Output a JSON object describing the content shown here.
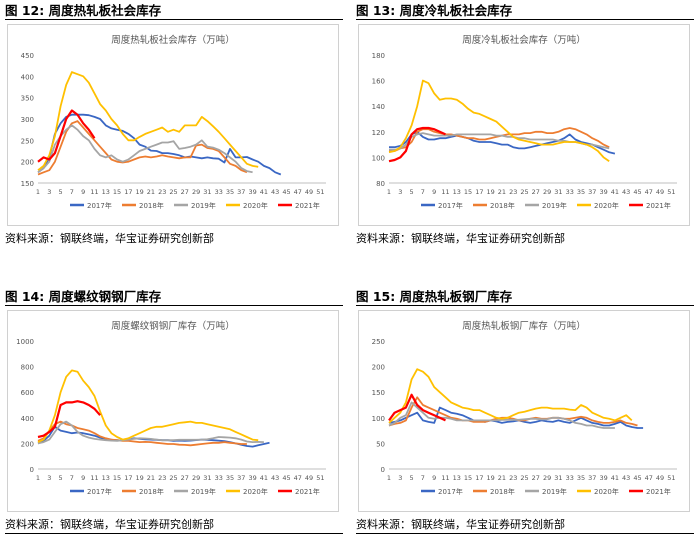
{
  "source_text": "资料来源：钢联终端，华宝证券研究创新部",
  "panels": [
    {
      "figure_label": "图 12:  周度热轧板社会库存",
      "chart_data": {
        "type": "line",
        "title": "周度热轧板社会库存（万吨）",
        "xlabel": "",
        "ylabel": "",
        "ylim": [
          150,
          450
        ],
        "y_ticks": [
          150,
          200,
          250,
          300,
          350,
          400,
          450
        ],
        "x_ticks": [
          1,
          3,
          5,
          7,
          9,
          11,
          13,
          15,
          17,
          19,
          21,
          23,
          25,
          27,
          29,
          31,
          33,
          35,
          37,
          39,
          41,
          43,
          45,
          47,
          49,
          51
        ],
        "series": [
          {
            "name": "2017年",
            "color": "#3a67c4",
            "values": [
              175,
              185,
              210,
              265,
              290,
              305,
              310,
              310,
              310,
              309,
              305,
              300,
              285,
              278,
              275,
              272,
              265,
              255,
              240,
              235,
              226,
              225,
              220,
              220,
              218,
              215,
              210,
              212,
              210,
              208,
              210,
              208,
              207,
              198,
              230,
              210,
              210,
              211,
              205,
              200,
              190,
              185,
              175,
              170
            ]
          },
          {
            "name": "2018年",
            "color": "#ed7d31",
            "values": [
              170,
              175,
              180,
              200,
              235,
              270,
              290,
              295,
              280,
              265,
              250,
              235,
              220,
              205,
              200,
              198,
              200,
              205,
              210,
              212,
              210,
              212,
              215,
              212,
              210,
              208,
              210,
              210,
              238,
              240,
              232,
              230,
              225,
              210,
              195,
              190,
              180,
              175
            ]
          },
          {
            "name": "2019年",
            "color": "#a5a5a5",
            "values": [
              175,
              185,
              200,
              240,
              260,
              275,
              285,
              275,
              260,
              250,
              230,
              215,
              210,
              215,
              205,
              200,
              205,
              215,
              225,
              230,
              235,
              240,
              245,
              245,
              248,
              230,
              232,
              235,
              240,
              250,
              235,
              233,
              228,
              220,
              210,
              200,
              185,
              178,
              175
            ]
          },
          {
            "name": "2020年",
            "color": "#ffc000",
            "values": [
              180,
              190,
              215,
              260,
              330,
              380,
              410,
              405,
              400,
              385,
              360,
              335,
              320,
              300,
              285,
              265,
              250,
              250,
              258,
              265,
              270,
              275,
              280,
              270,
              275,
              270,
              285,
              285,
              285,
              305,
              295,
              283,
              270,
              255,
              240,
              225,
              210,
              195,
              190,
              188
            ]
          },
          {
            "name": "2021年",
            "color": "#ff0000",
            "values": [
              200,
              210,
              205,
              220,
              260,
              300,
              320,
              310,
              290,
              275,
              255
            ]
          }
        ]
      }
    },
    {
      "figure_label": "图 13:  周度冷轧板社会库存",
      "chart_data": {
        "type": "line",
        "title": "周度冷轧板社会库存（万吨）",
        "xlabel": "",
        "ylabel": "",
        "ylim": [
          80,
          180
        ],
        "y_ticks": [
          80,
          100,
          120,
          140,
          160,
          180
        ],
        "x_ticks": [
          1,
          3,
          5,
          7,
          9,
          11,
          13,
          15,
          17,
          19,
          21,
          23,
          25,
          27,
          29,
          31,
          33,
          35,
          37,
          39,
          41,
          43,
          45,
          47,
          49,
          51
        ],
        "series": [
          {
            "name": "2017年",
            "color": "#3a67c4",
            "values": [
              108,
              108,
              109,
              112,
              118,
              120,
              116,
              114,
              114,
              115,
              115,
              116,
              117,
              116,
              115,
              113,
              112,
              112,
              112,
              111,
              110,
              110,
              108,
              107,
              107,
              108,
              109,
              110,
              111,
              112,
              113,
              115,
              118,
              114,
              112,
              111,
              110,
              108,
              106,
              104,
              103
            ]
          },
          {
            "name": "2018年",
            "color": "#ed7d31",
            "values": [
              105,
              105,
              107,
              108,
              112,
              120,
              122,
              122,
              120,
              119,
              118,
              118,
              117,
              116,
              115,
              115,
              114,
              114,
              115,
              116,
              117,
              118,
              118,
              118,
              119,
              119,
              120,
              120,
              119,
              119,
              120,
              122,
              123,
              122,
              120,
              118,
              115,
              113,
              110,
              108
            ]
          },
          {
            "name": "2019年",
            "color": "#a5a5a5",
            "values": [
              106,
              106,
              107,
              110,
              116,
              118,
              119,
              118,
              117,
              117,
              117,
              117,
              118,
              118,
              118,
              118,
              118,
              118,
              118,
              117,
              117,
              116,
              116,
              115,
              115,
              114,
              114,
              114,
              114,
              114,
              113,
              113,
              112,
              112,
              111,
              110,
              110,
              109,
              108,
              107
            ]
          },
          {
            "name": "2020年",
            "color": "#ffc000",
            "values": [
              104,
              105,
              108,
              115,
              125,
              140,
              160,
              158,
              150,
              145,
              146,
              146,
              145,
              142,
              138,
              135,
              134,
              132,
              130,
              128,
              124,
              120,
              116,
              114,
              113,
              112,
              111,
              110,
              110,
              110,
              111,
              112,
              112,
              112,
              111,
              110,
              108,
              105,
              100,
              97
            ]
          },
          {
            "name": "2021年",
            "color": "#ff0000",
            "values": [
              97,
              98,
              100,
              105,
              118,
              122,
              123,
              123,
              122,
              120,
              118
            ]
          }
        ]
      }
    },
    {
      "figure_label": "图 14:  周度螺纹钢钢厂库存",
      "chart_data": {
        "type": "line",
        "title": "周度螺纹钢钢厂库存（万吨）",
        "xlabel": "",
        "ylabel": "",
        "ylim": [
          0,
          1000
        ],
        "y_ticks": [
          0,
          200,
          400,
          600,
          800,
          1000
        ],
        "x_ticks": [
          1,
          3,
          5,
          7,
          9,
          11,
          13,
          15,
          17,
          19,
          21,
          23,
          25,
          27,
          29,
          31,
          33,
          35,
          37,
          39,
          41,
          43,
          45,
          47,
          49,
          51
        ],
        "series": [
          {
            "name": "2017年",
            "color": "#3a67c4",
            "values": [
              200,
              220,
              260,
              330,
              300,
              290,
              280,
              285,
              280,
              270,
              260,
              245,
              232,
              228,
              225,
              222,
              228,
              240,
              235,
              232,
              230,
              228,
              225,
              225,
              220,
              222,
              220,
              222,
              226,
              230,
              228,
              225,
              222,
              218,
              210,
              200,
              190,
              180,
              175,
              185,
              195,
              205
            ]
          },
          {
            "name": "2018年",
            "color": "#ed7d31",
            "values": [
              220,
              240,
              300,
              350,
              370,
              350,
              340,
              320,
              310,
              300,
              280,
              255,
              240,
              230,
              225,
              220,
              220,
              215,
              210,
              212,
              210,
              205,
              200,
              195,
              195,
              190,
              188,
              185,
              190,
              195,
              200,
              205,
              205,
              210,
              205,
              200,
              195,
              195
            ]
          },
          {
            "name": "2019年",
            "color": "#a5a5a5",
            "values": [
              200,
              210,
              230,
              290,
              350,
              370,
              340,
              290,
              260,
              245,
              235,
              230,
              225,
              222,
              220,
              225,
              230,
              235,
              240,
              238,
              235,
              230,
              225,
              225,
              226,
              228,
              228,
              228,
              228,
              230,
              232,
              240,
              250,
              248,
              245,
              240,
              230,
              215,
              210,
              212,
              210
            ]
          },
          {
            "name": "2020年",
            "color": "#ffc000",
            "values": [
              210,
              230,
              300,
              420,
              600,
              720,
              770,
              760,
              690,
              640,
              570,
              450,
              340,
              280,
              250,
              230,
              240,
              260,
              280,
              300,
              320,
              330,
              330,
              340,
              350,
              360,
              365,
              370,
              360,
              360,
              350,
              340,
              330,
              320,
              310,
              290,
              270,
              250,
              230,
              225
            ]
          },
          {
            "name": "2021年",
            "color": "#ff0000",
            "values": [
              250,
              260,
              290,
              330,
              500,
              520,
              520,
              530,
              520,
              500,
              470,
              420
            ]
          }
        ]
      }
    },
    {
      "figure_label": "图 15:  周度热轧板钢厂库存",
      "chart_data": {
        "type": "line",
        "title": "周度热轧板钢厂库存（万吨）",
        "xlabel": "",
        "ylabel": "",
        "ylim": [
          0,
          250
        ],
        "y_ticks": [
          0,
          50,
          100,
          150,
          200,
          250
        ],
        "x_ticks": [
          1,
          3,
          5,
          7,
          9,
          11,
          13,
          15,
          17,
          19,
          21,
          23,
          25,
          27,
          29,
          31,
          33,
          35,
          37,
          39,
          41,
          43,
          45,
          47,
          49,
          51
        ],
        "series": [
          {
            "name": "2017年",
            "color": "#3a67c4",
            "values": [
              90,
              92,
              95,
              100,
              105,
              110,
              95,
              92,
              90,
              120,
              115,
              110,
              108,
              105,
              100,
              95,
              95,
              92,
              95,
              93,
              90,
              92,
              93,
              95,
              92,
              90,
              92,
              95,
              93,
              92,
              95,
              92,
              90,
              95,
              100,
              95,
              90,
              88,
              85,
              85,
              88,
              92,
              85,
              82,
              80,
              80
            ]
          },
          {
            "name": "2018年",
            "color": "#ed7d31",
            "values": [
              85,
              88,
              90,
              95,
              120,
              140,
              125,
              120,
              115,
              110,
              105,
              100,
              98,
              95,
              95,
              92,
              92,
              92,
              95,
              98,
              100,
              100,
              98,
              95,
              95,
              98,
              100,
              98,
              98,
              100,
              100,
              98,
              98,
              100,
              102,
              100,
              95,
              92,
              90,
              90,
              92,
              95,
              90,
              88,
              85
            ]
          },
          {
            "name": "2019年",
            "color": "#a5a5a5",
            "values": [
              85,
              90,
              100,
              105,
              130,
              120,
              110,
              100,
              98,
              100,
              100,
              98,
              95,
              95,
              95,
              95,
              95,
              95,
              95,
              95,
              96,
              96,
              96,
              96,
              97,
              98,
              98,
              97,
              97,
              100,
              100,
              98,
              95,
              90,
              88,
              85,
              85,
              82,
              80,
              80,
              80
            ]
          },
          {
            "name": "2020年",
            "color": "#ffc000",
            "values": [
              90,
              100,
              110,
              130,
              175,
              195,
              190,
              180,
              160,
              150,
              140,
              130,
              125,
              120,
              118,
              115,
              115,
              110,
              105,
              100,
              98,
              100,
              105,
              110,
              112,
              115,
              118,
              120,
              120,
              118,
              118,
              118,
              116,
              115,
              125,
              120,
              110,
              105,
              100,
              98,
              95,
              100,
              105,
              95
            ]
          },
          {
            "name": "2021年",
            "color": "#ff0000",
            "values": [
              95,
              110,
              115,
              120,
              145,
              125,
              115,
              110,
              105,
              100,
              95
            ]
          }
        ]
      }
    }
  ]
}
